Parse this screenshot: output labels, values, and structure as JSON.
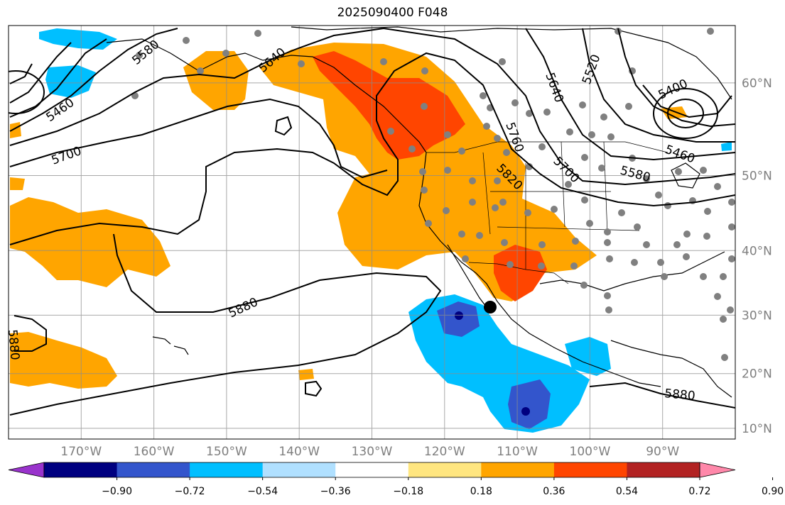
{
  "title": "2025090400 F048",
  "map": {
    "lon_range": [
      -180,
      -80
    ],
    "lat_range": [
      8,
      65
    ],
    "lon_ticks": [
      "170°W",
      "160°W",
      "150°W",
      "140°W",
      "130°W",
      "120°W",
      "110°W",
      "100°W",
      "90°W"
    ],
    "lat_ticks": [
      "60°N",
      "50°N",
      "40°N",
      "30°N",
      "20°N",
      "10°N"
    ],
    "height_contours": [
      "5400",
      "5460",
      "5460",
      "5520",
      "5580",
      "5580",
      "5640",
      "5640",
      "5700",
      "5700",
      "5760",
      "5820",
      "5880",
      "5880",
      "5880"
    ],
    "grid": true
  },
  "colorbar": {
    "ticks": [
      "−0.90",
      "−0.72",
      "−0.54",
      "−0.36",
      "−0.18",
      "0.18",
      "0.36",
      "0.54",
      "0.72",
      "0.90"
    ],
    "colors": [
      "#9933cc",
      "#000080",
      "#3355cc",
      "#00bfff",
      "#b0e0ff",
      "#ffffff",
      "#ffe680",
      "#ffa500",
      "#ff4500",
      "#b22222",
      "#ff88aa"
    ]
  }
}
